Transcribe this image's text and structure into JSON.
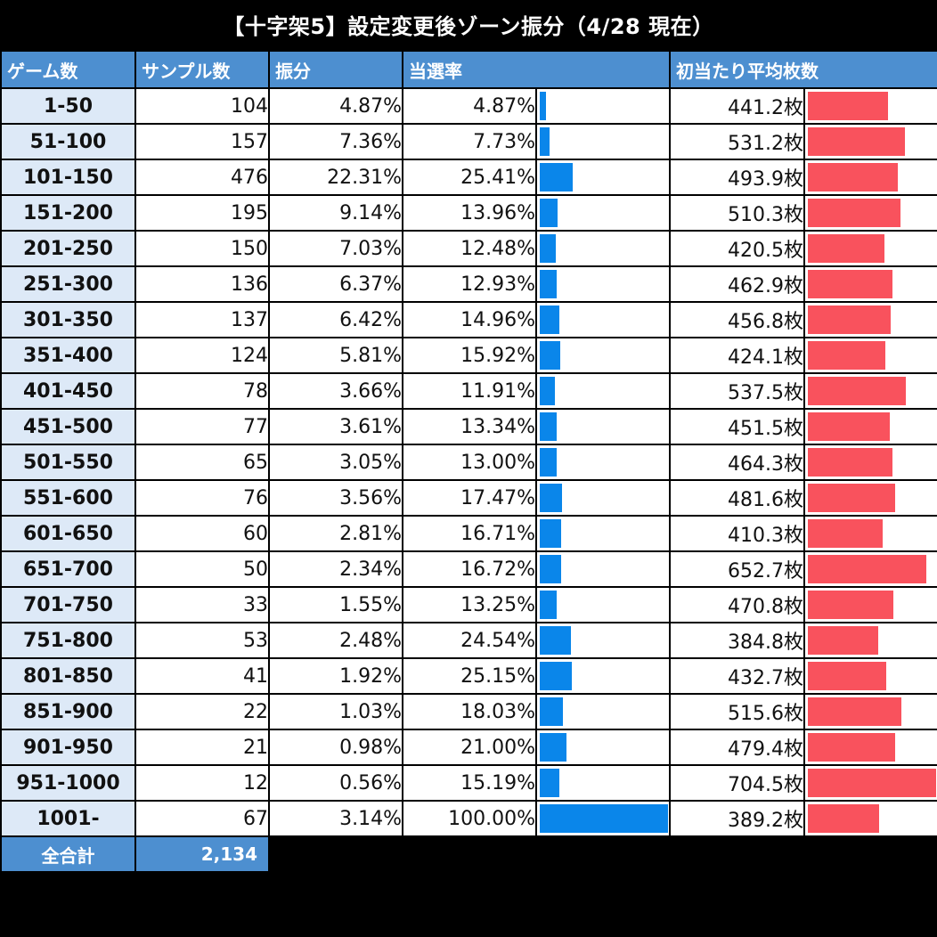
{
  "title": "【十字架5】設定変更後ゾーン振分（4/28 現在）",
  "headers": {
    "zone": "ゲーム数",
    "samples": "サンプル数",
    "share": "振分",
    "rate": "当選率",
    "coins": "初当たり平均枚数"
  },
  "colors": {
    "header_bg": "#4d8fd0",
    "zone_bg": "#dde9f7",
    "rate_bar": "#0a86ea",
    "coin_bar": "#f9525d"
  },
  "rows": [
    {
      "zone": "1-50",
      "samples": "104",
      "share": "4.87%",
      "rate": "4.87%",
      "coins": "441.2枚"
    },
    {
      "zone": "51-100",
      "samples": "157",
      "share": "7.36%",
      "rate": "7.73%",
      "coins": "531.2枚"
    },
    {
      "zone": "101-150",
      "samples": "476",
      "share": "22.31%",
      "rate": "25.41%",
      "coins": "493.9枚"
    },
    {
      "zone": "151-200",
      "samples": "195",
      "share": "9.14%",
      "rate": "13.96%",
      "coins": "510.3枚"
    },
    {
      "zone": "201-250",
      "samples": "150",
      "share": "7.03%",
      "rate": "12.48%",
      "coins": "420.5枚"
    },
    {
      "zone": "251-300",
      "samples": "136",
      "share": "6.37%",
      "rate": "12.93%",
      "coins": "462.9枚"
    },
    {
      "zone": "301-350",
      "samples": "137",
      "share": "6.42%",
      "rate": "14.96%",
      "coins": "456.8枚"
    },
    {
      "zone": "351-400",
      "samples": "124",
      "share": "5.81%",
      "rate": "15.92%",
      "coins": "424.1枚"
    },
    {
      "zone": "401-450",
      "samples": "78",
      "share": "3.66%",
      "rate": "11.91%",
      "coins": "537.5枚"
    },
    {
      "zone": "451-500",
      "samples": "77",
      "share": "3.61%",
      "rate": "13.34%",
      "coins": "451.5枚"
    },
    {
      "zone": "501-550",
      "samples": "65",
      "share": "3.05%",
      "rate": "13.00%",
      "coins": "464.3枚"
    },
    {
      "zone": "551-600",
      "samples": "76",
      "share": "3.56%",
      "rate": "17.47%",
      "coins": "481.6枚"
    },
    {
      "zone": "601-650",
      "samples": "60",
      "share": "2.81%",
      "rate": "16.71%",
      "coins": "410.3枚"
    },
    {
      "zone": "651-700",
      "samples": "50",
      "share": "2.34%",
      "rate": "16.72%",
      "coins": "652.7枚"
    },
    {
      "zone": "701-750",
      "samples": "33",
      "share": "1.55%",
      "rate": "13.25%",
      "coins": "470.8枚"
    },
    {
      "zone": "751-800",
      "samples": "53",
      "share": "2.48%",
      "rate": "24.54%",
      "coins": "384.8枚"
    },
    {
      "zone": "801-850",
      "samples": "41",
      "share": "1.92%",
      "rate": "25.15%",
      "coins": "432.7枚"
    },
    {
      "zone": "851-900",
      "samples": "22",
      "share": "1.03%",
      "rate": "18.03%",
      "coins": "515.6枚"
    },
    {
      "zone": "901-950",
      "samples": "21",
      "share": "0.98%",
      "rate": "21.00%",
      "coins": "479.4枚"
    },
    {
      "zone": "951-1000",
      "samples": "12",
      "share": "0.56%",
      "rate": "15.19%",
      "coins": "704.5枚"
    },
    {
      "zone": "1001-",
      "samples": "67",
      "share": "3.14%",
      "rate": "100.00%",
      "coins": "389.2枚"
    }
  ],
  "total": {
    "label": "全合計",
    "value": "2,134"
  },
  "chart_data": {
    "type": "table",
    "title": "【十字架5】設定変更後ゾーン振分（4/28 現在）",
    "columns": [
      "ゲーム数",
      "サンプル数",
      "振分",
      "当選率",
      "初当たり平均枚数"
    ],
    "categories": [
      "1-50",
      "51-100",
      "101-150",
      "151-200",
      "201-250",
      "251-300",
      "301-350",
      "351-400",
      "401-450",
      "451-500",
      "501-550",
      "551-600",
      "601-650",
      "651-700",
      "701-750",
      "751-800",
      "801-850",
      "851-900",
      "901-950",
      "951-1000",
      "1001-"
    ],
    "series": [
      {
        "name": "サンプル数",
        "values": [
          104,
          157,
          476,
          195,
          150,
          136,
          137,
          124,
          78,
          77,
          65,
          76,
          60,
          50,
          33,
          53,
          41,
          22,
          21,
          12,
          67
        ]
      },
      {
        "name": "振分",
        "values": [
          4.87,
          7.36,
          22.31,
          9.14,
          7.03,
          6.37,
          6.42,
          5.81,
          3.66,
          3.61,
          3.05,
          3.56,
          2.81,
          2.34,
          1.55,
          2.48,
          1.92,
          1.03,
          0.98,
          0.56,
          3.14
        ]
      },
      {
        "name": "当選率",
        "values": [
          4.87,
          7.73,
          25.41,
          13.96,
          12.48,
          12.93,
          14.96,
          15.92,
          11.91,
          13.34,
          13.0,
          17.47,
          16.71,
          16.72,
          13.25,
          24.54,
          25.15,
          18.03,
          21.0,
          15.19,
          100.0
        ]
      },
      {
        "name": "初当たり平均枚数",
        "values": [
          441.2,
          531.2,
          493.9,
          510.3,
          420.5,
          462.9,
          456.8,
          424.1,
          537.5,
          451.5,
          464.3,
          481.6,
          410.3,
          652.7,
          470.8,
          384.8,
          432.7,
          515.6,
          479.4,
          704.5,
          389.2
        ]
      }
    ],
    "rate_bar_range": [
      0,
      100
    ],
    "coins_bar_range": [
      0,
      704.5
    ],
    "total": {
      "label": "全合計",
      "value": 2134
    }
  }
}
